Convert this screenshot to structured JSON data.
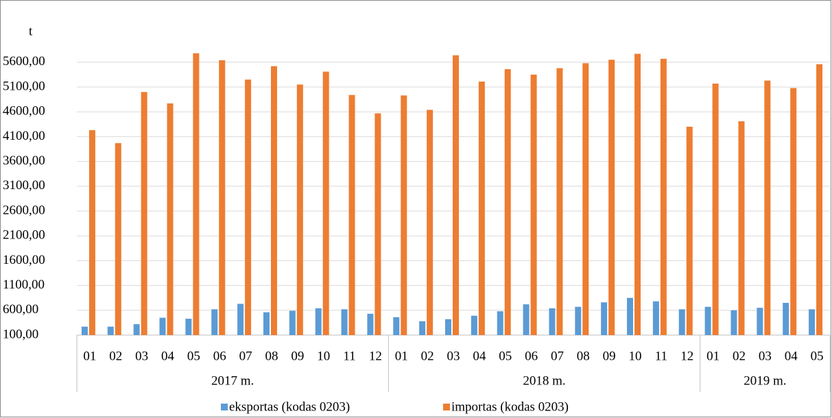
{
  "chart_data": {
    "type": "bar",
    "ylabel": "t",
    "groups": [
      {
        "label": "2017 m.",
        "categories": [
          "01",
          "02",
          "03",
          "04",
          "05",
          "06",
          "07",
          "08",
          "09",
          "10",
          "11",
          "12"
        ]
      },
      {
        "label": "2018 m.",
        "categories": [
          "01",
          "02",
          "03",
          "04",
          "05",
          "06",
          "07",
          "08",
          "09",
          "10",
          "11",
          "12"
        ]
      },
      {
        "label": "2019 m.",
        "categories": [
          "01",
          "02",
          "03",
          "04",
          "05"
        ]
      }
    ],
    "series": [
      {
        "name": "eksportas (kodas 0203)",
        "color": "#5b9bd5",
        "values": [
          270,
          270,
          320,
          450,
          430,
          620,
          730,
          560,
          590,
          640,
          620,
          530,
          460,
          380,
          420,
          490,
          580,
          720,
          640,
          670,
          760,
          850,
          780,
          620,
          670,
          600,
          650,
          750,
          620
        ]
      },
      {
        "name": "importas (kodas 0203)",
        "color": "#ed7d31",
        "values": [
          4230,
          3970,
          5000,
          4770,
          5780,
          5640,
          5250,
          5520,
          5150,
          5410,
          4940,
          4570,
          4930,
          4640,
          5740,
          5210,
          5460,
          5350,
          5480,
          5580,
          5650,
          5770,
          5670,
          4300,
          5170,
          4410,
          5230,
          5080,
          5560
        ]
      }
    ],
    "ylim": [
      100,
      6000
    ],
    "yticks": [
      {
        "value": 100,
        "label": "100,00"
      },
      {
        "value": 600,
        "label": "600,00"
      },
      {
        "value": 1100,
        "label": "1100,00"
      },
      {
        "value": 1600,
        "label": "1600,00"
      },
      {
        "value": 2100,
        "label": "2100,00"
      },
      {
        "value": 2600,
        "label": "2600,00"
      },
      {
        "value": 3100,
        "label": "3100,00"
      },
      {
        "value": 3600,
        "label": "3600,00"
      },
      {
        "value": 4100,
        "label": "4100,00"
      },
      {
        "value": 4600,
        "label": "4600,00"
      },
      {
        "value": 5100,
        "label": "5100,00"
      },
      {
        "value": 5600,
        "label": "5600,00"
      }
    ],
    "grid": true,
    "legend": "bottom"
  }
}
